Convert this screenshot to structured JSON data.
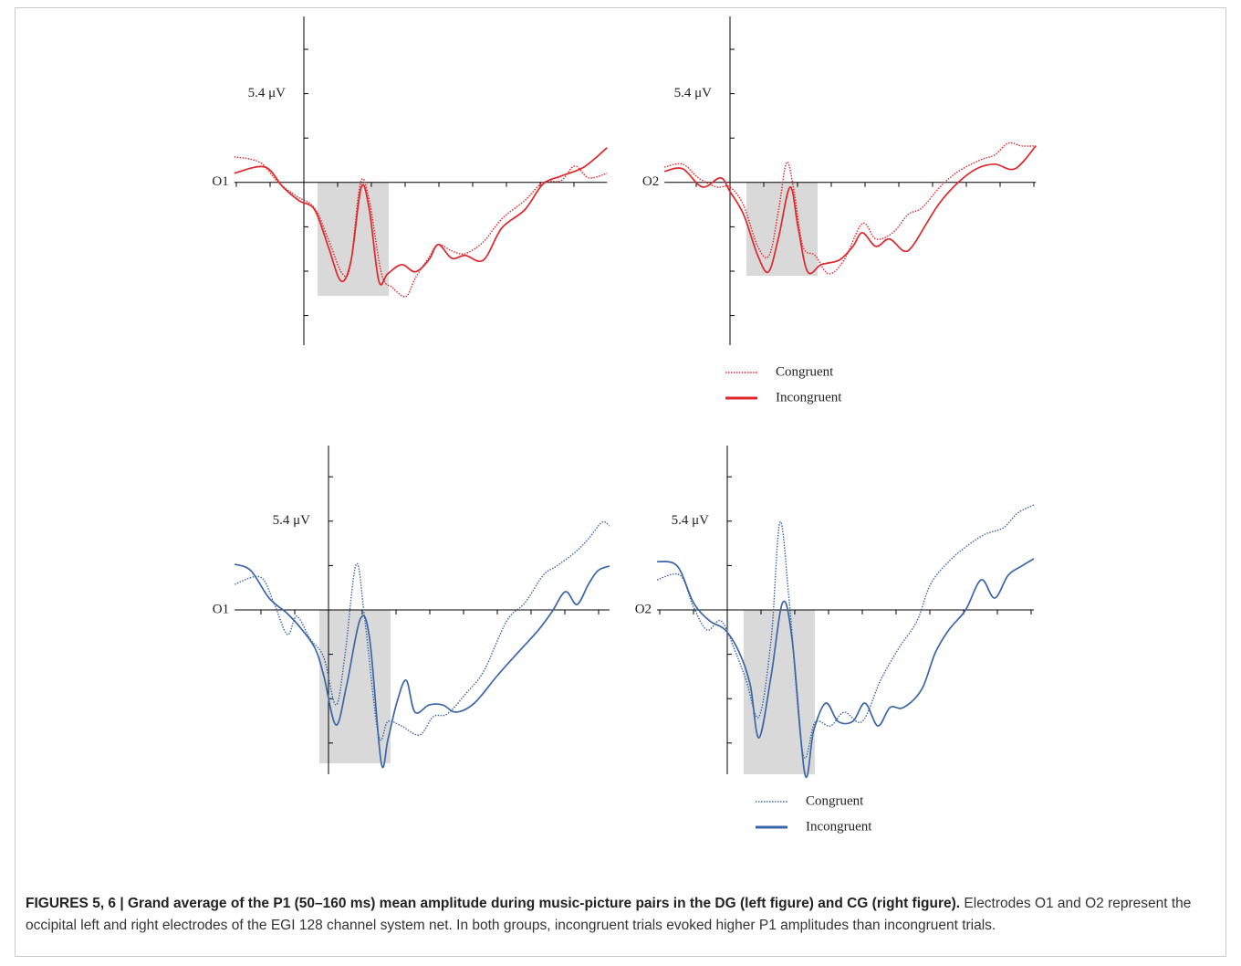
{
  "chart_data": [
    {
      "type": "line",
      "label": "O1",
      "xlim": [
        -103,
        449
      ],
      "ylim": [
        -9.9,
        10.1
      ],
      "xticks": [
        -100,
        -50,
        50,
        100,
        150,
        200,
        250,
        300,
        350,
        400
      ],
      "yticks": [
        -8.1,
        -5.4,
        -2.7,
        2.7,
        {
          "value": 5.4,
          "label": "5.4 μV"
        },
        8.1
      ],
      "series": [
        {
          "color": "#e0262a",
          "dash": "dotted",
          "x": [
            -103,
            -65,
            -38,
            -11,
            16,
            36,
            57,
            69,
            84,
            97,
            115,
            131,
            151,
            165,
            185,
            199,
            219,
            239,
            266,
            293,
            327,
            354,
            381,
            401,
            422,
            449
          ],
          "values": [
            1.56,
            1.22,
            0,
            -0.83,
            -1.56,
            -3.44,
            -5.56,
            -5.0,
            0,
            -1.11,
            -5.56,
            -6.39,
            -6.94,
            -5.83,
            -4.56,
            -3.78,
            -4.17,
            -4.33,
            -3.61,
            -2.22,
            -1.11,
            0,
            0.11,
            1.0,
            0.28,
            0.56
          ]
        },
        {
          "color": "#e0262a",
          "dash": "solid",
          "x": [
            -103,
            -58,
            -31,
            -7,
            16,
            36,
            55,
            70,
            85,
            97,
            111,
            124,
            145,
            165,
            185,
            199,
            219,
            239,
            266,
            293,
            327,
            354,
            381,
            415,
            449
          ],
          "values": [
            0.56,
            0.94,
            -0.28,
            -1.11,
            -1.67,
            -3.89,
            -6.0,
            -4.72,
            -0.28,
            -1.67,
            -6.0,
            -5.56,
            -5.0,
            -5.44,
            -4.72,
            -3.78,
            -4.61,
            -4.44,
            -4.72,
            -2.78,
            -1.67,
            -0.11,
            0.39,
            0.94,
            2.11
          ]
        }
      ]
    },
    {
      "type": "line",
      "label": "O2",
      "xlim": [
        -97,
        453
      ],
      "ylim": [
        -9.9,
        10.1
      ],
      "xticks": [
        -50,
        50,
        100,
        150,
        200,
        250,
        300,
        350,
        400,
        450
      ],
      "yticks": [
        -8.1,
        -5.4,
        -2.7,
        2.7,
        {
          "value": 5.4,
          "label": "5.4 μV"
        },
        8.1
      ],
      "series": [
        {
          "name": "Congruent",
          "color": "#e0262a",
          "dash": "dotted",
          "x": [
            -97,
            -70,
            -47,
            -20,
            0,
            20,
            41,
            58,
            72,
            84,
            95,
            108,
            126,
            146,
            169,
            196,
            216,
            241,
            264,
            284,
            311,
            338,
            372,
            392,
            412,
            432,
            453
          ],
          "values": [
            0.94,
            1.11,
            0.28,
            -0.28,
            -0.28,
            -1.39,
            -3.89,
            -4.44,
            -1.67,
            1.22,
            -0.56,
            -3.89,
            -4.44,
            -5.56,
            -4.72,
            -2.5,
            -3.44,
            -3.06,
            -1.94,
            -1.56,
            -0.28,
            0.67,
            1.39,
            1.67,
            2.39,
            2.22,
            2.22
          ]
        },
        {
          "name": "Incongruent",
          "color": "#e0262a",
          "dash": "solid",
          "x": [
            -97,
            -70,
            -41,
            -14,
            0,
            20,
            41,
            57,
            72,
            89,
            101,
            115,
            135,
            162,
            182,
            196,
            216,
            236,
            257,
            270,
            291,
            311,
            338,
            365,
            392,
            422,
            453
          ],
          "values": [
            0.67,
            0.83,
            -0.28,
            0.28,
            -0.56,
            -1.94,
            -4.44,
            -5.44,
            -3.33,
            -0.28,
            -2.78,
            -5.44,
            -5.0,
            -4.72,
            -3.89,
            -3.06,
            -3.89,
            -3.44,
            -4.17,
            -3.89,
            -2.5,
            -1.22,
            0,
            0.83,
            1.11,
            0.83,
            2.22
          ]
        }
      ]
    },
    {
      "type": "line",
      "label": "O1",
      "xlim": [
        -139,
        416
      ],
      "ylim": [
        -10,
        10
      ],
      "xticks": [
        -100,
        -50,
        50,
        100,
        150,
        200,
        250,
        300,
        350,
        400
      ],
      "yticks": [
        -8.1,
        -5.4,
        -2.7,
        2.7,
        {
          "value": 5.4,
          "label": "5.4 μV"
        },
        8.1
      ],
      "series": [
        {
          "color": "#3a66a8",
          "dash": "dotted",
          "x": [
            -139,
            -101,
            -81,
            -61,
            -47,
            -27,
            -7,
            11,
            24,
            41,
            54,
            74,
            88,
            108,
            135,
            155,
            176,
            203,
            230,
            264,
            291,
            318,
            338,
            365,
            385,
            405,
            416
          ],
          "values": [
            1.56,
            2.0,
            0.44,
            -1.5,
            -0.39,
            -1.78,
            -2.89,
            -5.78,
            -2.89,
            2.78,
            -0.67,
            -7.61,
            -6.78,
            -7.06,
            -7.61,
            -6.5,
            -6.33,
            -5.11,
            -3.72,
            -0.67,
            0.44,
            2.11,
            2.67,
            3.5,
            4.33,
            5.33,
            5.11
          ]
        },
        {
          "color": "#3a66a8",
          "dash": "solid",
          "x": [
            -139,
            -115,
            -88,
            -61,
            -41,
            -20,
            -7,
            11,
            27,
            47,
            61,
            78,
            88,
            101,
            115,
            128,
            149,
            169,
            189,
            216,
            250,
            284,
            311,
            331,
            351,
            368,
            385,
            399,
            416
          ],
          "values": [
            2.78,
            2.39,
            0.72,
            -0.22,
            -1.11,
            -2.33,
            -4.0,
            -7.0,
            -4.56,
            -0.56,
            -1.78,
            -9.28,
            -7.89,
            -5.67,
            -4.28,
            -6.22,
            -5.78,
            -5.78,
            -6.22,
            -5.67,
            -4.0,
            -2.44,
            -1.22,
            -0.11,
            1.11,
            0.33,
            1.56,
            2.39,
            2.67
          ]
        }
      ]
    },
    {
      "type": "line",
      "label": "O2",
      "xlim": [
        -104,
        454
      ],
      "ylim": [
        -10,
        10
      ],
      "xticks": [
        -100,
        -50,
        50,
        100,
        150,
        200,
        250,
        300,
        350,
        400,
        450
      ],
      "yticks": [
        -8.1,
        -5.4,
        -2.7,
        2.7,
        {
          "value": 5.4,
          "label": "5.4 μV"
        },
        8.1
      ],
      "series": [
        {
          "name": "Congruent",
          "color": "#3a66a8",
          "dash": "dotted",
          "x": [
            -104,
            -70,
            -50,
            -30,
            -9,
            11,
            28,
            47,
            65,
            78,
            92,
            112,
            130,
            153,
            173,
            200,
            227,
            254,
            281,
            301,
            328,
            355,
            382,
            409,
            430,
            454
          ],
          "values": [
            1.83,
            2.11,
            0.17,
            -1.22,
            -0.67,
            -2.44,
            -4.28,
            -6.5,
            -1.78,
            5.33,
            0.44,
            -8.72,
            -6.83,
            -7.06,
            -6.22,
            -6.78,
            -4.28,
            -2.33,
            -0.67,
            1.56,
            2.94,
            3.89,
            4.61,
            5.0,
            5.89,
            6.39
          ]
        },
        {
          "name": "Incongruent",
          "color": "#3a66a8",
          "dash": "solid",
          "x": [
            -104,
            -74,
            -50,
            -26,
            -3,
            18,
            34,
            47,
            65,
            82,
            96,
            115,
            128,
            146,
            164,
            186,
            204,
            223,
            241,
            261,
            288,
            308,
            328,
            353,
            376,
            396,
            416,
            436,
            454
          ],
          "values": [
            2.94,
            2.67,
            0.44,
            -0.67,
            -1.22,
            -2.61,
            -4.56,
            -7.78,
            -4.0,
            0.44,
            -1.78,
            -10.0,
            -7.33,
            -5.67,
            -6.78,
            -6.78,
            -5.67,
            -7.06,
            -5.94,
            -5.94,
            -4.83,
            -2.61,
            -1.22,
            0,
            1.83,
            0.72,
            2.11,
            2.67,
            3.11
          ]
        }
      ]
    }
  ],
  "caption": {
    "title": "FIGURES 5, 6 | Grand average of the P1 (50–160 ms) mean amplitude during music-picture pairs in the DG (left figure) and CG (right figure).",
    "text": "Electrodes O1 and O2 represent the occipital left and right electrodes of the EGI 128 channel system net. In both groups, incongruent trials evoked higher P1 amplitudes than incongruent trials."
  }
}
